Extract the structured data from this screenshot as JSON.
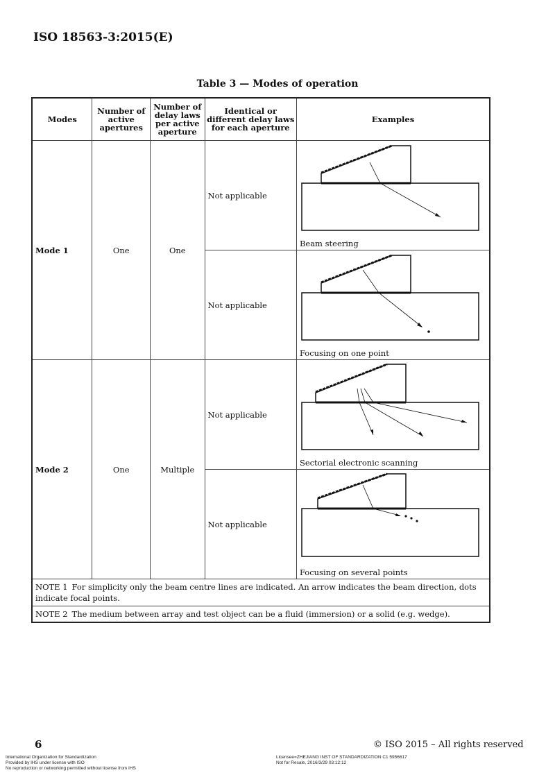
{
  "document_id": "ISO 18563-3:2015(E)",
  "table_caption": "Table 3 — Modes of operation",
  "columns": [
    "Modes",
    "Number of active apertures",
    "Number of delay laws per active aperture",
    "Identical or different delay laws for each aperture",
    "Examples"
  ],
  "rows": [
    {
      "mode": "Mode 1",
      "apertures": "One",
      "delay_laws": "One",
      "examples": [
        {
          "identical": "Not applicable",
          "label": "Beam steering"
        },
        {
          "identical": "Not applicable",
          "label": "Focusing on one point"
        }
      ]
    },
    {
      "mode": "Mode 2",
      "apertures": "One",
      "delay_laws": "Multiple",
      "examples": [
        {
          "identical": "Not applicable",
          "label": "Sectorial electronic scanning"
        },
        {
          "identical": "Not applicable",
          "label": "Focusing on several points"
        }
      ]
    }
  ],
  "notes": [
    {
      "tag": "NOTE 1",
      "text": "For simplicity only the beam centre lines are indicated. An arrow indicates the beam direction, dots indicate focal points."
    },
    {
      "tag": "NOTE 2",
      "text": "The medium between array and test object can be a fluid (immersion) or a solid (e.g. wedge)."
    }
  ],
  "footer": {
    "page_number": "6",
    "left_lines": [
      "International Organization for Standardization",
      "Provided by IHS under license with ISO",
      "No reproduction or networking permitted without license from IHS"
    ],
    "licensee_lines": [
      "Licensee=ZHEJIANG INST OF STANDARDIZATION C1 5956617",
      "Not for Resale, 2016/3/29 03:12:12"
    ],
    "copyright": "© ISO 2015 – All rights reserved"
  }
}
